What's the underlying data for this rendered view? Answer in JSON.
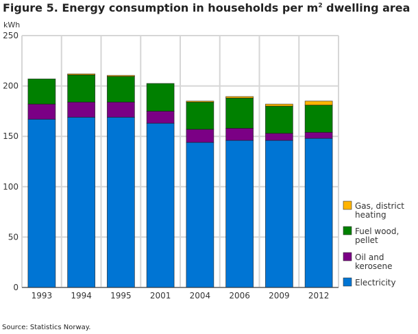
{
  "chart_data": {
    "type": "bar",
    "stacked": true,
    "title_prefix": "Figure 5. Energy consumption in households per m",
    "title_sup": "2",
    "title_suffix": " dwelling area",
    "ylabel": "kWh",
    "xlabel": "",
    "ylim": [
      0,
      250
    ],
    "yticks": [
      0,
      50,
      100,
      150,
      200,
      250
    ],
    "grid": true,
    "legend_position": "right",
    "categories": [
      "1993",
      "1994",
      "1995",
      "2001",
      "2004",
      "2006",
      "2009",
      "2012"
    ],
    "series": [
      {
        "name": "Electricity",
        "color": "#0075d4",
        "values": [
          167,
          169,
          169,
          163,
          144,
          146,
          146,
          148
        ]
      },
      {
        "name": "Oil and kerosene",
        "color": "#7b0085",
        "values": [
          15,
          15,
          15,
          12,
          13,
          12,
          7,
          6
        ]
      },
      {
        "name": "Fuel wood, pellet",
        "color": "#008000",
        "values": [
          25,
          27,
          25.5,
          27.5,
          27,
          30,
          27,
          27
        ]
      },
      {
        "name": "Gas, district heating",
        "color": "#ffb400",
        "values": [
          0,
          1,
          1,
          0,
          1,
          1.5,
          2,
          4
        ]
      }
    ],
    "legend_lines": {
      "Gas, district heating": [
        "Gas, district",
        "heating"
      ],
      "Fuel wood, pellet": [
        "Fuel wood,",
        "pellet"
      ],
      "Oil and kerosene": [
        "Oil and",
        "kerosene"
      ],
      "Electricity": [
        "Electricity"
      ]
    }
  },
  "source": "Source: Statistics Norway."
}
